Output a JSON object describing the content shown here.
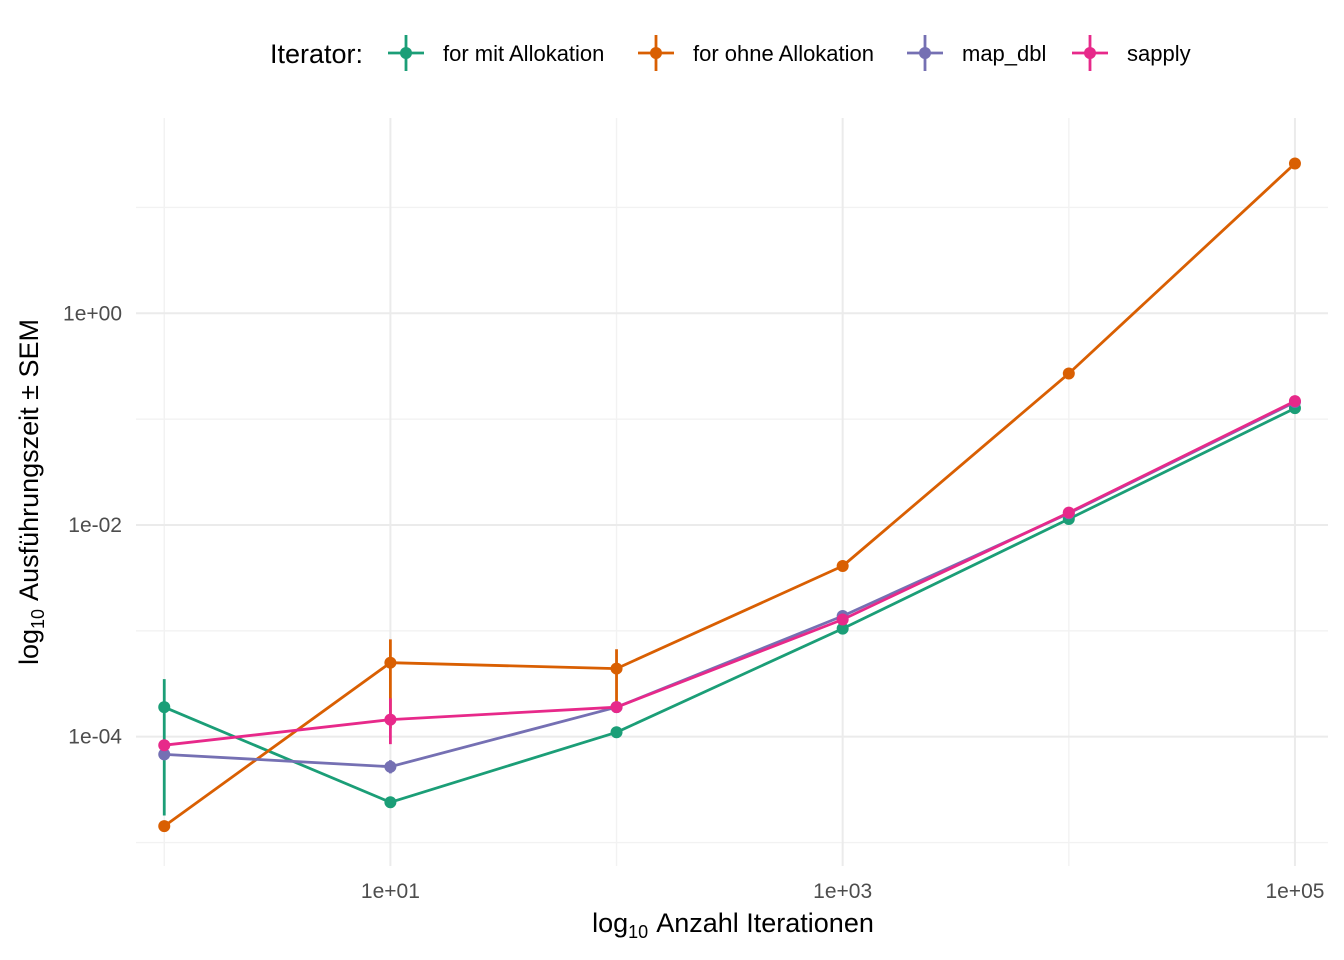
{
  "chart_data": {
    "type": "line",
    "title": "",
    "xlabel": "Anzahl Iterationen",
    "xlabel_prefix": "log",
    "xlabel_subscript": "10",
    "ylabel": "Ausführungszeit ± SEM",
    "ylabel_prefix": "log",
    "ylabel_subscript": "10",
    "x_scale": "log10",
    "y_scale": "log10",
    "xlim": [
      0.75,
      140000
    ],
    "ylim": [
      6e-06,
      70
    ],
    "x_ticks": [
      {
        "value": 10,
        "label": "1e+01"
      },
      {
        "value": 1000,
        "label": "1e+03"
      },
      {
        "value": 100000,
        "label": "1e+05"
      }
    ],
    "x_minor_ticks": [
      1,
      100,
      10000
    ],
    "y_ticks": [
      {
        "value": 0.0001,
        "label": "1e-04"
      },
      {
        "value": 0.01,
        "label": "1e-02"
      },
      {
        "value": 1,
        "label": "1e+00"
      }
    ],
    "y_minor_ticks": [
      1e-05,
      0.001,
      0.1,
      10
    ],
    "grid": true,
    "legend": {
      "title": "Iterator:",
      "position": "top"
    },
    "series": [
      {
        "name": "for mit Allokation",
        "color": "#1b9e77",
        "x": [
          1,
          10,
          100,
          1000,
          10000,
          100000
        ],
        "y": [
          0.00019,
          2.4e-05,
          0.00011,
          0.00105,
          0.0114,
          0.127
        ],
        "err_low": [
          1.8e-05,
          null,
          null,
          null,
          null,
          null
        ],
        "err_high": [
          0.00035,
          null,
          null,
          null,
          null,
          null
        ]
      },
      {
        "name": "for ohne Allokation",
        "color": "#d95f02",
        "x": [
          1,
          10,
          100,
          1000,
          10000,
          100000
        ],
        "y": [
          1.43e-05,
          0.0005,
          0.00044,
          0.0041,
          0.27,
          26
        ],
        "err_low": [
          null,
          0.00012,
          0.00017,
          null,
          null,
          null
        ],
        "err_high": [
          null,
          0.00083,
          0.00067,
          null,
          null,
          null
        ]
      },
      {
        "name": "map_dbl",
        "color": "#7570b3",
        "x": [
          1,
          10,
          100,
          1000,
          10000,
          100000
        ],
        "y": [
          6.8e-05,
          5.2e-05,
          0.00019,
          0.00138,
          0.0129,
          0.145
        ],
        "err_low": [
          null,
          4.5e-05,
          0.00017,
          null,
          null,
          null
        ],
        "err_high": [
          null,
          6e-05,
          0.00021,
          null,
          null,
          null
        ]
      },
      {
        "name": "sapply",
        "color": "#e7298a",
        "x": [
          1,
          10,
          100,
          1000,
          10000,
          100000
        ],
        "y": [
          8.3e-05,
          0.000145,
          0.00019,
          0.00128,
          0.0131,
          0.148
        ],
        "err_low": [
          null,
          8.5e-05,
          null,
          null,
          null,
          null
        ],
        "err_high": [
          null,
          0.00023,
          null,
          null,
          null,
          null
        ]
      }
    ]
  }
}
